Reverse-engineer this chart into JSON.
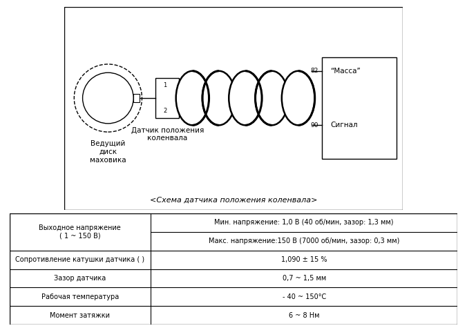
{
  "bg_color": "#ffffff",
  "border_color": "#000000",
  "diagram_title": "<Схема датчика положения коленвала>",
  "label_flywheel": "Ведущий\nдиск\nмаховика",
  "label_sensor": "Датчик положения\nколенвала",
  "label_mass": "“Масса”",
  "label_signal": "Сигнал",
  "pin_82": "82",
  "pin_90": "90",
  "pin_1": "1",
  "pin_2": "2",
  "table_rows": [
    {
      "left": "Выходное напряжение\n( 1 ~ 150 В)",
      "right_lines": [
        "Мин. напряжение: 1,0 В (40 об/мин, зазор: 1,3 мм)",
        "Макс. напряжение:150 В (7000 об/мин, зазор: 0,3 мм)"
      ]
    },
    {
      "left": "Сопротивление катушки датчика ( )",
      "right_lines": [
        "1,090 ± 15 %"
      ]
    },
    {
      "left": "Зазор датчика",
      "right_lines": [
        "0,7 ~ 1,5 мм"
      ]
    },
    {
      "left": "Рабочая температура",
      "right_lines": [
        "- 40 ~ 150°C"
      ]
    },
    {
      "left": "Момент затяжки",
      "right_lines": [
        "6 ~ 8 Нм"
      ]
    }
  ],
  "line_color": "#000000",
  "text_color": "#000000",
  "font_size_main": 8,
  "font_size_small": 7.5
}
